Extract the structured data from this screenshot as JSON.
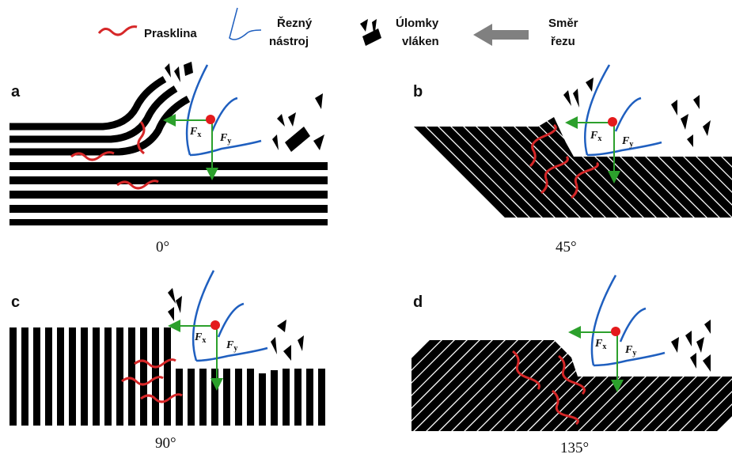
{
  "legend": {
    "crack": "Prasklina",
    "tool_line1": "Řezný",
    "tool_line2": "nástroj",
    "debris_line1": "Úlomky",
    "debris_line2": "vláken",
    "direction_line1": "Směr",
    "direction_line2": "řezu"
  },
  "force_labels": {
    "fx": "F",
    "fx_sub": "x",
    "fy": "F",
    "fy_sub": "y"
  },
  "panels": [
    {
      "letter": "a",
      "angle": "0°"
    },
    {
      "letter": "b",
      "angle": "45°"
    },
    {
      "letter": "c",
      "angle": "90°"
    },
    {
      "letter": "d",
      "angle": "135°"
    }
  ],
  "colors": {
    "fiber": "#000000",
    "crack": "#d62728",
    "tool": "#1f5fbf",
    "force": "#2ca02c",
    "tool_tip": "#e41a1c",
    "arrow": "#808080"
  },
  "icons": [
    "crack-icon",
    "cutting-tool-icon",
    "fiber-debris-icon",
    "cutting-direction-arrow-icon"
  ]
}
